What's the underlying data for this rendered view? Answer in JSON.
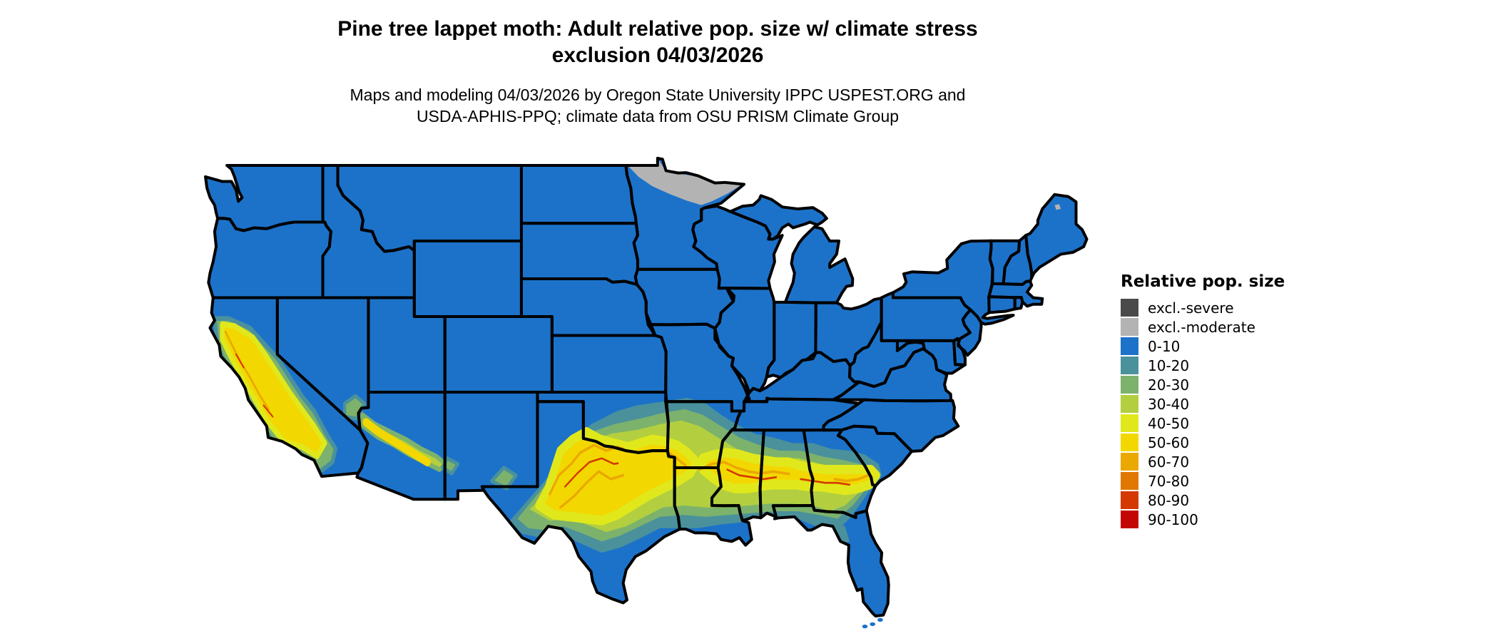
{
  "title": {
    "line1": "Pine tree lappet moth: Adult relative pop. size w/ climate stress",
    "line2": "exclusion 04/03/2026"
  },
  "subtitle": {
    "line1": "Maps and modeling 04/03/2026 by Oregon State University IPPC USPEST.ORG and",
    "line2": "USDA-APHIS-PPQ; climate data from OSU PRISM Climate Group"
  },
  "legend": {
    "title": "Relative pop. size",
    "items": [
      {
        "label": "excl.-severe",
        "color": "#4A4A4A"
      },
      {
        "label": "excl.-moderate",
        "color": "#B3B3B3"
      },
      {
        "label": "0-10",
        "color": "#1C72C9"
      },
      {
        "label": "10-20",
        "color": "#4A919C"
      },
      {
        "label": "20-30",
        "color": "#7CB26C"
      },
      {
        "label": "30-40",
        "color": "#B3CF3F"
      },
      {
        "label": "40-50",
        "color": "#E0E81C"
      },
      {
        "label": "50-60",
        "color": "#F2D800"
      },
      {
        "label": "60-70",
        "color": "#EBA800"
      },
      {
        "label": "70-80",
        "color": "#E07800"
      },
      {
        "label": "80-90",
        "color": "#D43903"
      },
      {
        "label": "90-100",
        "color": "#C40505"
      }
    ]
  },
  "map": {
    "region": "Continental United States with state borders",
    "colors": {
      "base_land": "#1C72C9",
      "state_border": "#000000",
      "water_background": "#FFFFFF"
    },
    "notable_areas": {
      "excl_moderate_zone": "northern Minnesota border strip",
      "high_population_band": "southern band from west Texas through Oklahoma, Arkansas, Louisiana, Mississippi, Alabama, Georgia to South Carolina (values 20-90)",
      "west_hotspots": "California coast ranges and Sierra foothills, Arizona Mogollon rim diagonal, southern Nevada and southwest New Mexico patches"
    }
  }
}
